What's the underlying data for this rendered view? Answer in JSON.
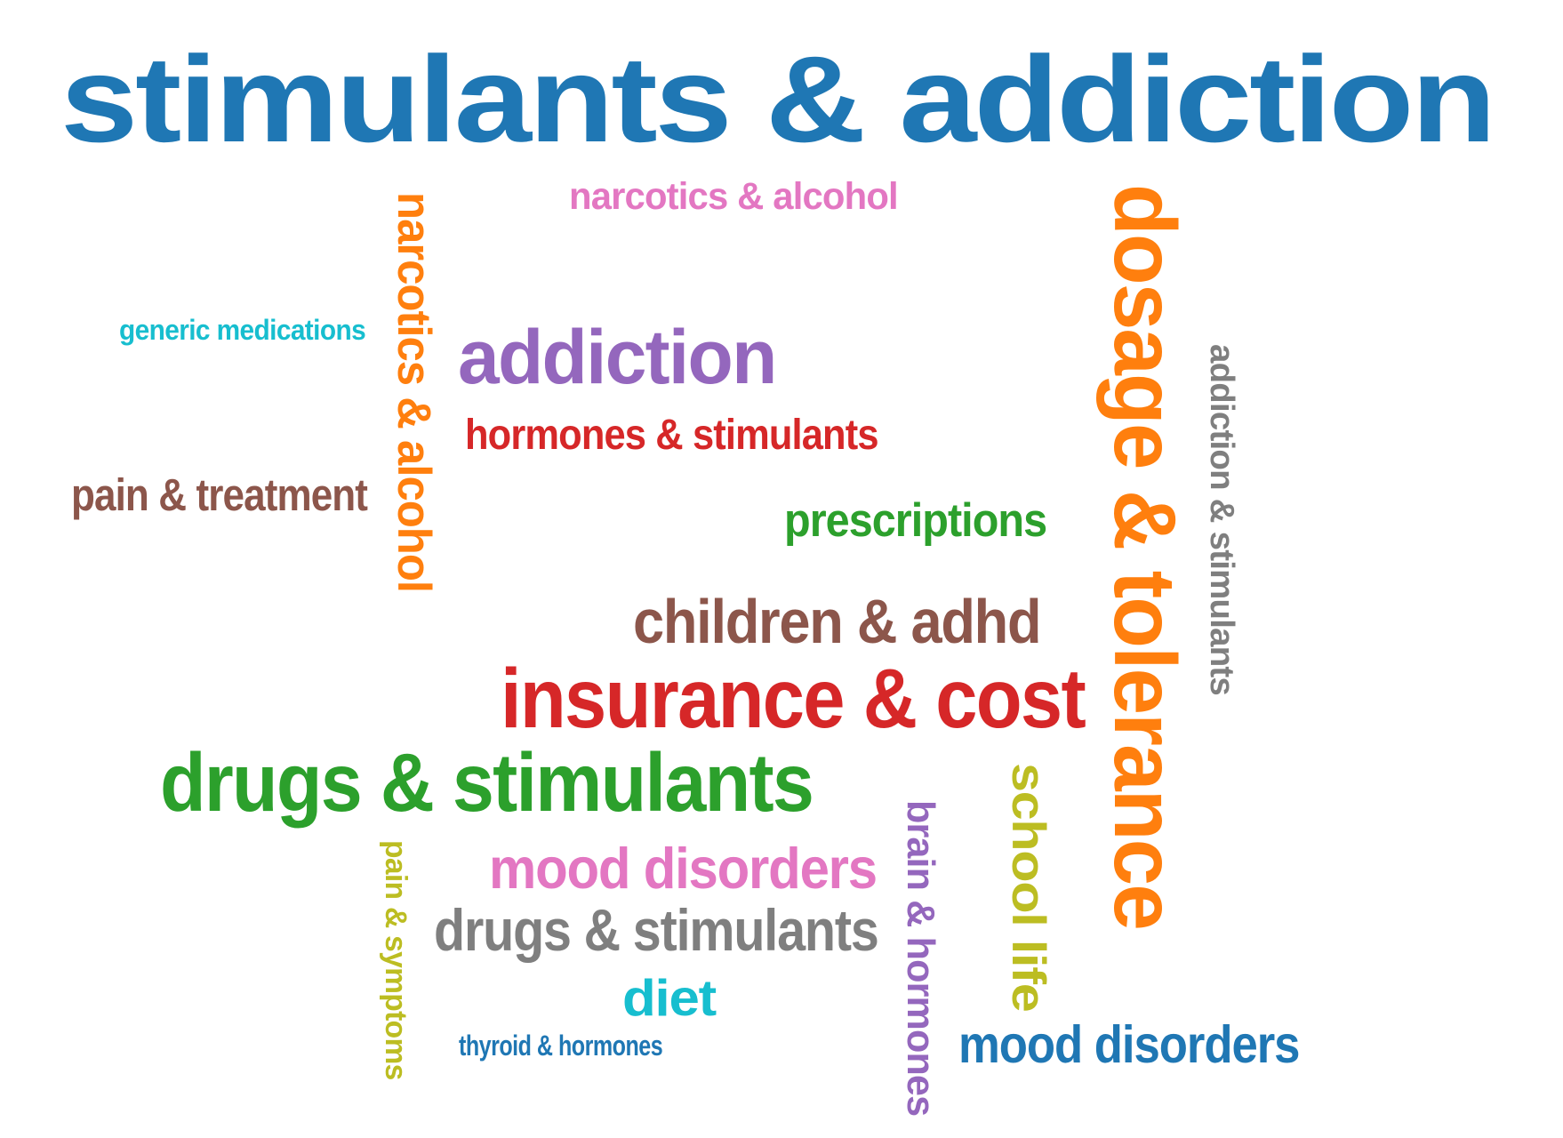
{
  "words": [
    {
      "id": "stimulants-addiction",
      "text": "stimulants & addiction",
      "color": "#1f77b4",
      "rotation": 0
    },
    {
      "id": "narcotics-alcohol-h",
      "text": "narcotics & alcohol",
      "color": "#e377c2",
      "rotation": 0
    },
    {
      "id": "narcotics-alcohol-v",
      "text": "narcotics & alcohol",
      "color": "#ff7f0e",
      "rotation": 90
    },
    {
      "id": "dosage-tolerance",
      "text": "dosage & tolerance",
      "color": "#ff7f0e",
      "rotation": 90
    },
    {
      "id": "addiction-stimulants-v",
      "text": "addiction & stimulants",
      "color": "#7f7f7f",
      "rotation": 90
    },
    {
      "id": "generic-medications",
      "text": "generic medications",
      "color": "#17becf",
      "rotation": 0
    },
    {
      "id": "addiction",
      "text": "addiction",
      "color": "#9467bd",
      "rotation": 0
    },
    {
      "id": "hormones-stimulants",
      "text": "hormones & stimulants",
      "color": "#d62728",
      "rotation": 0
    },
    {
      "id": "pain-treatment",
      "text": "pain & treatment",
      "color": "#8c564b",
      "rotation": 0
    },
    {
      "id": "prescriptions",
      "text": "prescriptions",
      "color": "#2ca02c",
      "rotation": 0
    },
    {
      "id": "children-adhd",
      "text": "children & adhd",
      "color": "#8c564b",
      "rotation": 0
    },
    {
      "id": "insurance-cost",
      "text": "insurance & cost",
      "color": "#d62728",
      "rotation": 0
    },
    {
      "id": "drugs-stimulants-green",
      "text": "drugs & stimulants",
      "color": "#2ca02c",
      "rotation": 0
    },
    {
      "id": "mood-disorders-pink",
      "text": "mood disorders",
      "color": "#e377c2",
      "rotation": 0
    },
    {
      "id": "drugs-stimulants-gray",
      "text": "drugs & stimulants",
      "color": "#7f7f7f",
      "rotation": 0
    },
    {
      "id": "diet",
      "text": "diet",
      "color": "#17becf",
      "rotation": 0
    },
    {
      "id": "thyroid-hormones",
      "text": "thyroid & hormones",
      "color": "#1f77b4",
      "rotation": 0
    },
    {
      "id": "pain-symptoms",
      "text": "pain & symptoms",
      "color": "#bcbd22",
      "rotation": 90
    },
    {
      "id": "brain-hormones",
      "text": "brain & hormones",
      "color": "#9467bd",
      "rotation": 90
    },
    {
      "id": "school-life",
      "text": "school life",
      "color": "#bcbd22",
      "rotation": 90
    },
    {
      "id": "mood-disorders-blue",
      "text": "mood disorders",
      "color": "#1f77b4",
      "rotation": 0
    }
  ]
}
